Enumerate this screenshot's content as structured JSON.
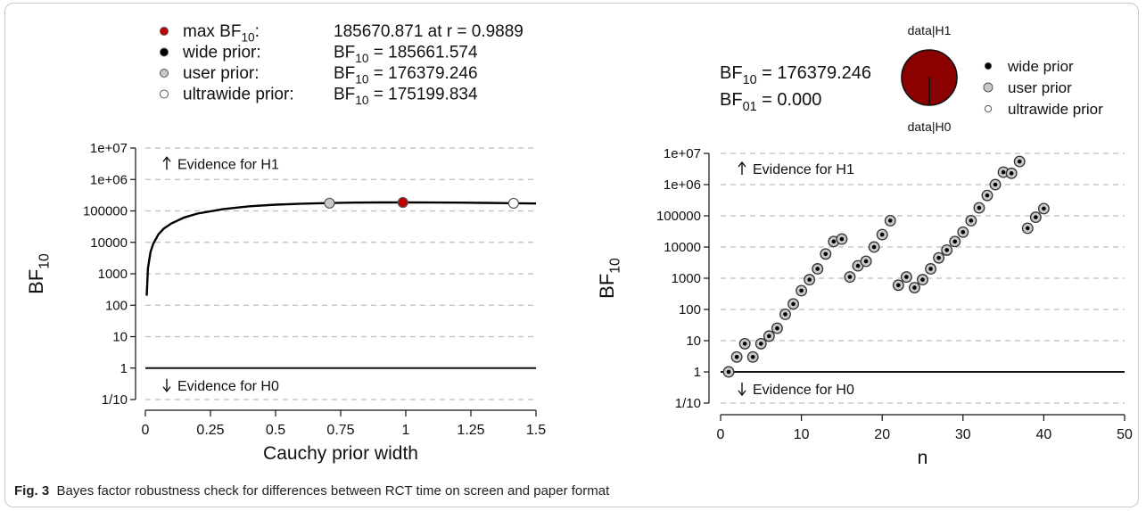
{
  "caption": {
    "label": "Fig. 3",
    "text": "Bayes factor robustness check for differences between RCT time on screen and paper format"
  },
  "colors": {
    "max_point": "#c00000",
    "wide_point": "#000000",
    "user_point": "#c8c8c8",
    "ultrawide_point": "#ffffff",
    "pie_fill": "#8b0000",
    "gridline": "#bdbdbd",
    "curve": "#000000"
  },
  "chart_data": [
    {
      "type": "line",
      "title": "",
      "xlabel": "Cauchy prior width",
      "ylabel": "BF10",
      "y_scale": "log",
      "xlim": [
        0,
        1.5
      ],
      "ylim": [
        0.1,
        10000000
      ],
      "x_ticks": [
        "0",
        "0.25",
        "0.5",
        "0.75",
        "1",
        "1.25",
        "1.5"
      ],
      "y_ticks": [
        "1/10",
        "1",
        "10",
        "100",
        "1000",
        "10000",
        "100000",
        "1e+06",
        "1e+07"
      ],
      "grid": "horizontal dashed",
      "annotations": {
        "up": "Evidence for H1",
        "down": "Evidence for H0"
      },
      "legend": [
        {
          "name": "max BF10:",
          "value": "185670.871 at r = 0.9889"
        },
        {
          "name": "wide prior:",
          "value": "BF10 = 185661.574"
        },
        {
          "name": "user prior:",
          "value": "BF10 = 176379.246"
        },
        {
          "name": "ultrawide prior:",
          "value": "BF10 = 175199.834"
        }
      ],
      "series": [
        {
          "name": "",
          "x": [
            0.005,
            0.01,
            0.02,
            0.03,
            0.05,
            0.07,
            0.1,
            0.15,
            0.2,
            0.3,
            0.4,
            0.5,
            0.6,
            0.7,
            0.8,
            0.9,
            1.0,
            1.1,
            1.2,
            1.3,
            1.4,
            1.5
          ],
          "y": [
            200,
            1500,
            5000,
            9000,
            18000,
            27000,
            40000,
            62000,
            82000,
            115000,
            140000,
            158000,
            170000,
            178000,
            183000,
            185500,
            185670,
            185000,
            183000,
            180000,
            176000,
            172000
          ]
        }
      ],
      "points": [
        {
          "name": "user prior",
          "x": 0.707,
          "y": 176379.246
        },
        {
          "name": "max",
          "x": 0.9889,
          "y": 185670.871
        },
        {
          "name": "wide prior",
          "x": 1.0,
          "y": 185661.574
        },
        {
          "name": "ultrawide prior",
          "x": 1.414,
          "y": 175199.834
        }
      ],
      "reference_line": {
        "y": 1
      }
    },
    {
      "type": "scatter",
      "title": "",
      "xlabel": "n",
      "ylabel": "BF10",
      "y_scale": "log",
      "xlim": [
        0,
        50
      ],
      "ylim": [
        0.1,
        10000000
      ],
      "x_ticks": [
        "0",
        "10",
        "20",
        "30",
        "40",
        "50"
      ],
      "y_ticks": [
        "1/10",
        "1",
        "10",
        "100",
        "1000",
        "10000",
        "100000",
        "1e+06",
        "1e+07"
      ],
      "grid": "horizontal dashed",
      "annotations": {
        "up": "Evidence for H1",
        "down": "Evidence for H0"
      },
      "bf_text": {
        "bf10": "BF10 = 176379.246",
        "bf01": "BF01 = 0.000"
      },
      "pie": {
        "top_label": "data|H1",
        "bottom_label": "data|H0",
        "h1_share": 0.99999
      },
      "legend": [
        "wide prior",
        "user prior",
        "ultrawide prior"
      ],
      "series": [
        {
          "name": "user prior",
          "x": [
            1,
            2,
            3,
            4,
            5,
            6,
            7,
            8,
            9,
            10,
            11,
            12,
            13,
            14,
            15,
            16,
            17,
            18,
            19,
            20,
            21,
            22,
            23,
            24,
            25,
            26,
            27,
            28,
            29,
            30,
            31,
            32,
            33,
            34,
            35,
            36,
            37,
            38,
            39,
            40
          ],
          "y": [
            1,
            3,
            8,
            3,
            8,
            14,
            25,
            70,
            150,
            400,
            900,
            2000,
            6000,
            15000,
            18000,
            1100,
            2500,
            3500,
            10000,
            25000,
            70000,
            600,
            1100,
            500,
            900,
            2000,
            4500,
            8000,
            15000,
            30000,
            70000,
            180000,
            450000,
            1000000,
            2500000,
            2300000,
            5500000,
            40000,
            90000,
            170000
          ]
        }
      ],
      "reference_line": {
        "y": 1
      }
    }
  ]
}
